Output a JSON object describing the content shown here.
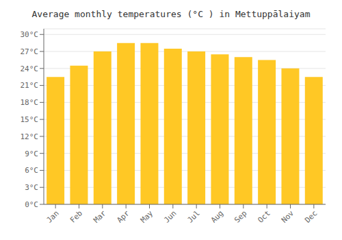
{
  "chart_data": {
    "type": "bar",
    "title": "Average monthly temperatures (°C ) in Mettuppālaiyam",
    "categories": [
      "Jan",
      "Feb",
      "Mar",
      "Apr",
      "May",
      "Jun",
      "Jul",
      "Aug",
      "Sep",
      "Oct",
      "Nov",
      "Dec"
    ],
    "values": [
      22.5,
      24.5,
      27.0,
      28.5,
      28.5,
      27.5,
      27.0,
      26.5,
      26.0,
      25.5,
      24.0,
      22.5
    ],
    "color": "#FFC825",
    "ylim": [
      0,
      31
    ],
    "yticks": [
      {
        "value": 0,
        "label": "0°C"
      },
      {
        "value": 3,
        "label": "3°C"
      },
      {
        "value": 6,
        "label": "6°C"
      },
      {
        "value": 9,
        "label": "9°C"
      },
      {
        "value": 12,
        "label": "12°C"
      },
      {
        "value": 15,
        "label": "15°C"
      },
      {
        "value": 18,
        "label": "18°C"
      },
      {
        "value": 21,
        "label": "21°C"
      },
      {
        "value": 24,
        "label": "24°C"
      },
      {
        "value": 27,
        "label": "27°C"
      },
      {
        "value": 30,
        "label": "30°C"
      }
    ],
    "grid": true
  }
}
